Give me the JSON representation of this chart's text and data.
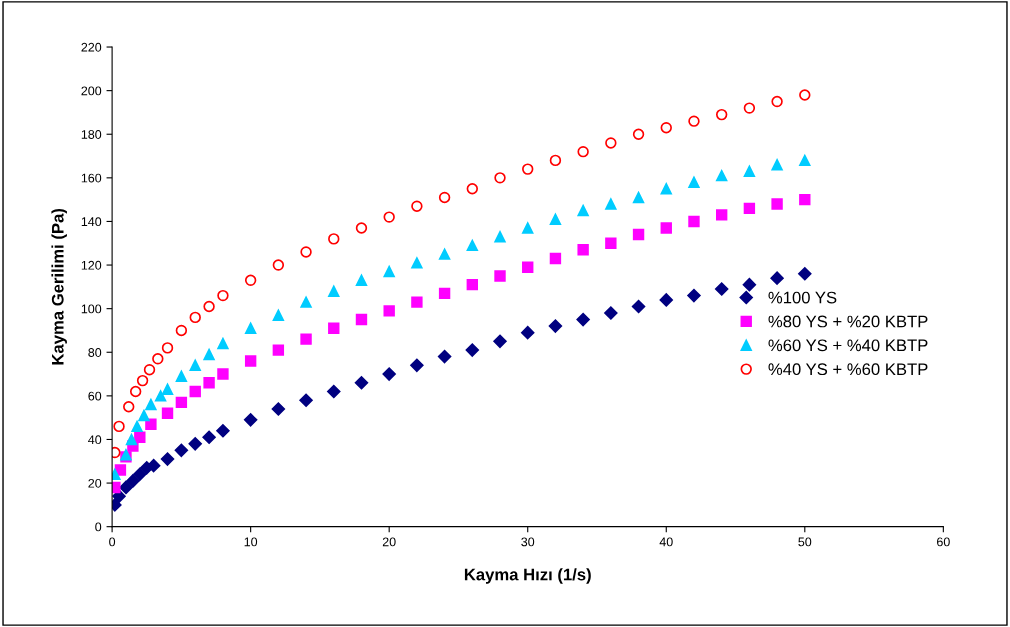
{
  "chart_data": {
    "type": "scatter",
    "xlabel": "Kayma Hızı (1/s)",
    "ylabel": "Kayma Gerilimi (Pa)",
    "xlim": [
      0,
      60
    ],
    "xticks": [
      0,
      10,
      20,
      30,
      40,
      50,
      60
    ],
    "ylim": [
      0,
      220
    ],
    "yticks": [
      0,
      20,
      40,
      60,
      80,
      100,
      120,
      140,
      160,
      180,
      200,
      220
    ],
    "grid": false,
    "legend": "right",
    "series": [
      {
        "name": "%100 YS",
        "color": "#000080",
        "marker": "diamond",
        "x": [
          0.2,
          0.5,
          1,
          1.5,
          2,
          2.5,
          3,
          4,
          5,
          6,
          7,
          8,
          10,
          12,
          14,
          16,
          18,
          20,
          22,
          24,
          26,
          28,
          30,
          32,
          34,
          36,
          38,
          40,
          42,
          44,
          46,
          48,
          50
        ],
        "values": [
          10,
          14,
          18,
          21,
          24,
          27,
          28,
          31,
          35,
          38,
          41,
          44,
          49,
          54,
          58,
          62,
          66,
          70,
          74,
          78,
          81,
          85,
          89,
          92,
          95,
          98,
          101,
          104,
          106,
          109,
          111,
          114,
          116
        ]
      },
      {
        "name": "%80 YS + %20 KBTP",
        "color": "#ff00ff",
        "marker": "square",
        "x": [
          0.2,
          0.6,
          1,
          1.5,
          2,
          2.8,
          4,
          5,
          6,
          7,
          8,
          10,
          12,
          14,
          16,
          18,
          20,
          22,
          24,
          26,
          28,
          30,
          32,
          34,
          36,
          38,
          40,
          42,
          44,
          46,
          48,
          50
        ],
        "values": [
          18,
          26,
          32,
          37,
          41,
          47,
          52,
          57,
          62,
          66,
          70,
          76,
          81,
          86,
          91,
          95,
          99,
          103,
          107,
          111,
          115,
          119,
          123,
          127,
          130,
          134,
          137,
          140,
          143,
          146,
          148,
          150
        ]
      },
      {
        "name": "%60 YS + %40 KBTP",
        "color": "#00ccff",
        "marker": "triangle",
        "x": [
          0.2,
          1,
          1.4,
          1.8,
          2.3,
          2.8,
          3.5,
          4,
          5,
          6,
          7,
          8,
          10,
          12,
          14,
          16,
          18,
          20,
          22,
          24,
          26,
          28,
          30,
          32,
          34,
          36,
          38,
          40,
          42,
          44,
          46,
          48,
          50
        ],
        "values": [
          24,
          33,
          40,
          46,
          51,
          56,
          60,
          63,
          69,
          74,
          79,
          84,
          91,
          97,
          103,
          108,
          113,
          117,
          121,
          125,
          129,
          133,
          137,
          141,
          145,
          148,
          151,
          155,
          158,
          161,
          163,
          166,
          168
        ]
      },
      {
        "name": "%40 YS + %60 KBTP",
        "color": "#ff0000",
        "marker": "circle",
        "x": [
          0.2,
          0.5,
          1.2,
          1.7,
          2.2,
          2.7,
          3.3,
          4,
          5,
          6,
          7,
          8,
          10,
          12,
          14,
          16,
          18,
          20,
          22,
          24,
          26,
          28,
          30,
          32,
          34,
          36,
          38,
          40,
          42,
          44,
          46,
          48,
          50
        ],
        "values": [
          34,
          46,
          55,
          62,
          67,
          72,
          77,
          82,
          90,
          96,
          101,
          106,
          113,
          120,
          126,
          132,
          137,
          142,
          147,
          151,
          155,
          160,
          164,
          168,
          172,
          176,
          180,
          183,
          186,
          189,
          192,
          195,
          198
        ]
      }
    ]
  }
}
